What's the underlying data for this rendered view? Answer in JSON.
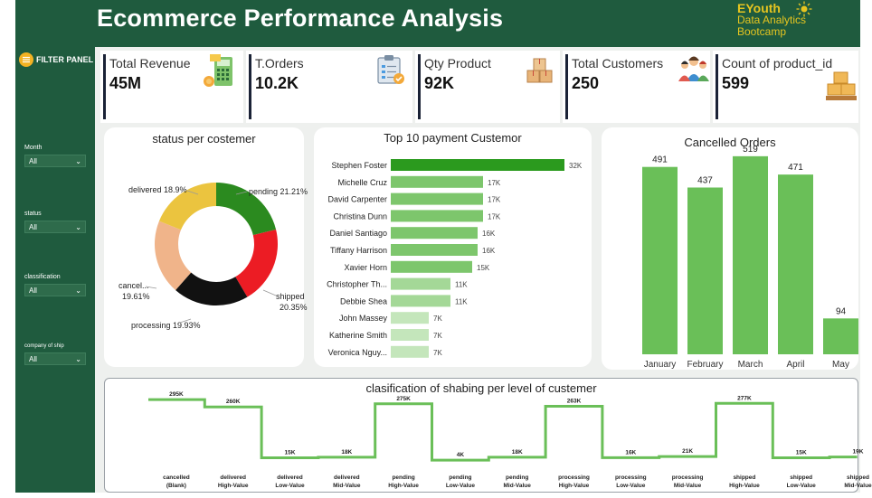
{
  "header": {
    "title": "Ecommerce Performance Analysis"
  },
  "brand": {
    "line1": "EYouth",
    "line2": "Data Analytics",
    "line3": "Bootcamp"
  },
  "filter_panel": {
    "label": "FILTER PANEL",
    "slicers": [
      {
        "label": "Month",
        "value": "All"
      },
      {
        "label": "status",
        "value": "All"
      },
      {
        "label": "classification",
        "value": "All"
      },
      {
        "label": "company of ship",
        "value": "All"
      }
    ]
  },
  "kpis": [
    {
      "label": "Total Revenue",
      "value": "45M",
      "icon": "cash-register-icon"
    },
    {
      "label": "T.Orders",
      "value": "10.2K",
      "icon": "order-form-icon"
    },
    {
      "label": "Qty Product",
      "value": "92K",
      "icon": "boxes-icon"
    },
    {
      "label": "Total Customers",
      "value": "250",
      "icon": "customers-icon"
    },
    {
      "label": "Count of product_id",
      "value": "599",
      "icon": "stacked-boxes-icon"
    }
  ],
  "colors": {
    "accent_green": "#2b8a1f",
    "bar_green": "#6abf58",
    "light_green": "#a9d89c",
    "header_green": "#1f5b3e"
  },
  "chart_data": [
    {
      "type": "pie",
      "title": "status per costemer",
      "slices": [
        {
          "name": "pending",
          "value": 21.21,
          "label": "pending 21.21%",
          "color": "#2b8a1f"
        },
        {
          "name": "shipped",
          "value": 20.35,
          "label": "shipped 20.35%",
          "color": "#ec1c24"
        },
        {
          "name": "processing",
          "value": 19.93,
          "label": "processing 19.93%",
          "color": "#111111"
        },
        {
          "name": "cancel...",
          "value": 19.61,
          "label": "cancel... 19.61%",
          "color": "#f0b48a"
        },
        {
          "name": "delivered",
          "value": 18.9,
          "label": "delivered 18.9%",
          "color": "#ebc43f"
        }
      ]
    },
    {
      "type": "bar",
      "orientation": "horizontal",
      "title": "Top 10 payment Custemor",
      "categories": [
        "Stephen Foster",
        "Michelle Cruz",
        "David Carpenter",
        "Christina Dunn",
        "Daniel Santiago",
        "Tiffany Harrison",
        "Xavier Horn",
        "Christopher Th...",
        "Debbie Shea",
        "John Massey",
        "Katherine Smith",
        "Veronica Nguy..."
      ],
      "values": [
        32,
        17,
        17,
        17,
        16,
        16,
        15,
        11,
        11,
        7,
        7,
        7
      ],
      "data_labels": [
        "32K",
        "17K",
        "17K",
        "17K",
        "16K",
        "16K",
        "15K",
        "11K",
        "11K",
        "7K",
        "7K",
        "7K"
      ]
    },
    {
      "type": "bar",
      "title": "Cancelled Orders",
      "categories": [
        "January",
        "February",
        "March",
        "April",
        "May"
      ],
      "values": [
        491,
        437,
        519,
        471,
        94
      ],
      "ylim": [
        0,
        560
      ]
    },
    {
      "type": "line",
      "title": "clasification of shabing per level of custemer",
      "categories": [
        [
          "cancelled",
          "(Blank)"
        ],
        [
          "delivered",
          "High-Value"
        ],
        [
          "delivered",
          "Low-Value"
        ],
        [
          "delivered",
          "Mid-Value"
        ],
        [
          "pending",
          "High-Value"
        ],
        [
          "pending",
          "Low-Value"
        ],
        [
          "pending",
          "Mid-Value"
        ],
        [
          "processing",
          "High-Value"
        ],
        [
          "processing",
          "Low-Value"
        ],
        [
          "processing",
          "Mid-Value"
        ],
        [
          "shipped",
          "High-Value"
        ],
        [
          "shipped",
          "Low-Value"
        ],
        [
          "shipped",
          "Mid-Value"
        ]
      ],
      "values": [
        295,
        260,
        15,
        18,
        275,
        4,
        18,
        263,
        16,
        21,
        277,
        15,
        19
      ],
      "data_labels": [
        "295K",
        "260K",
        "15K",
        "18K",
        "275K",
        "4K",
        "18K",
        "263K",
        "16K",
        "21K",
        "277K",
        "15K",
        "19K"
      ],
      "ylim": [
        0,
        300
      ]
    }
  ]
}
